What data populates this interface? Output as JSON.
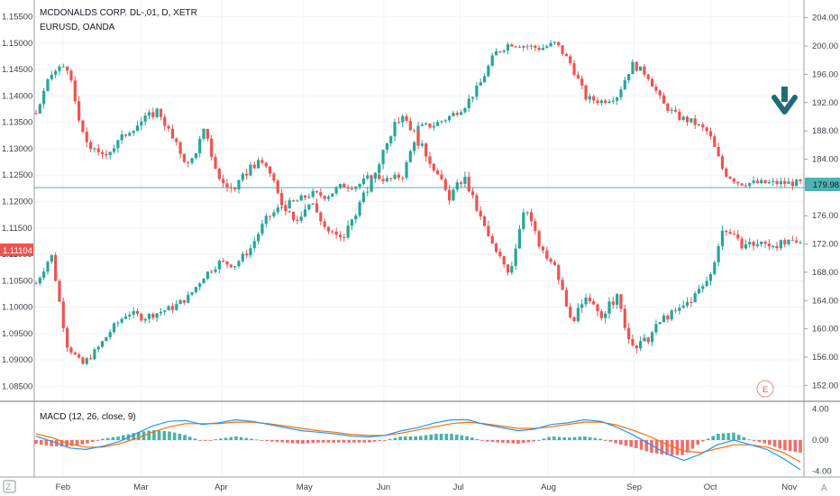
{
  "legend": {
    "main_symbol": "MCDONALDS CORP. DL-,01, D, XETR",
    "overlay_symbol": "EURUSD, OANDA",
    "macd_label": "MACD (12, 26, close, 9)"
  },
  "left_axis": {
    "ticks": [
      "1.15500",
      "1.15000",
      "1.14500",
      "1.14000",
      "1.13500",
      "1.13000",
      "1.12500",
      "1.12000",
      "1.11500",
      "1.11000",
      "1.10500",
      "1.10000",
      "1.09500",
      "1.09000",
      "1.08500"
    ],
    "current_label": "1.11104"
  },
  "right_axis": {
    "ticks": [
      "204.00",
      "200.00",
      "196.00",
      "192.00",
      "188.00",
      "184.00",
      "180.00",
      "176.00",
      "172.00",
      "168.00",
      "164.00",
      "160.00",
      "156.00",
      "152.00"
    ],
    "current_label": "179.98"
  },
  "macd_axis": {
    "ticks": [
      "4.00",
      "0.00",
      "-4.00"
    ]
  },
  "x_axis": {
    "ticks": [
      "Feb",
      "Mar",
      "Apr",
      "May",
      "Jun",
      "Jul",
      "Aug",
      "Sep",
      "Oct",
      "Nov"
    ]
  },
  "earnings_marker": "E",
  "colors": {
    "up": "#26a69a",
    "down": "#ef5350",
    "macd_line": "#2196f3",
    "signal_line": "#ff6d00",
    "price_line": "#4fb3b3",
    "arrow": "#1f6b7a",
    "eurusd_label_bg": "#ef5350"
  },
  "icons": {
    "down_arrow": "arrow-down-icon",
    "tv_logo": "tradingview-logo-icon"
  },
  "chart_data": [
    {
      "type": "candlestick",
      "name": "EURUSD, OANDA",
      "axis": "left",
      "ylim": [
        1.0825,
        1.1575
      ],
      "points": [
        [
          0,
          1.1045
        ],
        [
          0.02,
          1.11
        ],
        [
          0.04,
          1.093
        ],
        [
          0.06,
          1.089
        ],
        [
          0.08,
          1.092
        ],
        [
          0.1,
          1.096
        ],
        [
          0.12,
          1.099
        ],
        [
          0.14,
          1.098
        ],
        [
          0.16,
          1.099
        ],
        [
          0.18,
          1.1
        ],
        [
          0.2,
          1.102
        ],
        [
          0.22,
          1.106
        ],
        [
          0.24,
          1.1085
        ],
        [
          0.26,
          1.108
        ],
        [
          0.28,
          1.111
        ],
        [
          0.3,
          1.1165
        ],
        [
          0.32,
          1.119
        ],
        [
          0.34,
          1.12
        ],
        [
          0.36,
          1.1215
        ],
        [
          0.38,
          1.121
        ],
        [
          0.4,
          1.123
        ],
        [
          0.42,
          1.123
        ],
        [
          0.44,
          1.125
        ],
        [
          0.46,
          1.124
        ],
        [
          0.48,
          1.125
        ],
        [
          0.5,
          1.134
        ],
        [
          0.52,
          1.1345
        ],
        [
          0.54,
          1.136
        ],
        [
          0.56,
          1.138
        ],
        [
          0.58,
          1.142
        ],
        [
          0.6,
          1.148
        ],
        [
          0.62,
          1.15
        ],
        [
          0.64,
          1.1495
        ],
        [
          0.66,
          1.149
        ],
        [
          0.68,
          1.15
        ],
        [
          0.7,
          1.146
        ],
        [
          0.72,
          1.1395
        ],
        [
          0.74,
          1.139
        ],
        [
          0.76,
          1.14
        ],
        [
          0.78,
          1.146
        ],
        [
          0.8,
          1.144
        ],
        [
          0.82,
          1.1385
        ],
        [
          0.84,
          1.136
        ],
        [
          0.86,
          1.135
        ],
        [
          0.88,
          1.133
        ],
        [
          0.9,
          1.1255
        ],
        [
          0.92,
          1.1235
        ]
      ]
    },
    {
      "type": "candlestick",
      "name": "MCDONALDS CORP. DL-,01, D, XETR",
      "axis": "right",
      "ylim": [
        150,
        206
      ],
      "points": [
        [
          0,
          190.5
        ],
        [
          0.02,
          196.0
        ],
        [
          0.04,
          197.5
        ],
        [
          0.06,
          187.5
        ],
        [
          0.08,
          184.5
        ],
        [
          0.1,
          185.5
        ],
        [
          0.12,
          188.0
        ],
        [
          0.14,
          189.5
        ],
        [
          0.16,
          191.0
        ],
        [
          0.18,
          186.5
        ],
        [
          0.2,
          183.0
        ],
        [
          0.22,
          188.0
        ],
        [
          0.24,
          181.0
        ],
        [
          0.26,
          179.5
        ],
        [
          0.28,
          183.0
        ],
        [
          0.3,
          183.5
        ],
        [
          0.32,
          178.0
        ],
        [
          0.34,
          175.5
        ],
        [
          0.36,
          178.0
        ],
        [
          0.38,
          174.0
        ],
        [
          0.4,
          172.5
        ],
        [
          0.42,
          177.0
        ],
        [
          0.44,
          181.0
        ],
        [
          0.46,
          187.0
        ],
        [
          0.48,
          190.5
        ],
        [
          0.5,
          186.5
        ],
        [
          0.52,
          183.0
        ],
        [
          0.54,
          178.5
        ],
        [
          0.56,
          181.5
        ],
        [
          0.58,
          176.0
        ],
        [
          0.6,
          171.0
        ],
        [
          0.62,
          168.0
        ],
        [
          0.64,
          178.0
        ],
        [
          0.66,
          171.0
        ],
        [
          0.68,
          168.5
        ],
        [
          0.7,
          161.0
        ],
        [
          0.72,
          164.0
        ],
        [
          0.74,
          162.0
        ],
        [
          0.76,
          164.5
        ],
        [
          0.78,
          157.0
        ],
        [
          0.8,
          158.5
        ],
        [
          0.82,
          161.5
        ],
        [
          0.84,
          162.5
        ],
        [
          0.86,
          164.5
        ],
        [
          0.88,
          167.0
        ],
        [
          0.9,
          174.5
        ],
        [
          0.92,
          172.0
        ]
      ]
    },
    {
      "type": "line",
      "name": "MACD (12, 26, close, 9)",
      "ylim": [
        -4.5,
        4.5
      ],
      "series": [
        {
          "name": "MACD",
          "values": [
            0.5,
            -0.2,
            -1.0,
            -1.2,
            -0.8,
            -0.2,
            0.8,
            1.8,
            2.4,
            2.5,
            2.0,
            2.2,
            2.6,
            2.4,
            2.0,
            1.6,
            1.2,
            1.0,
            0.8,
            0.5,
            0.4,
            0.6,
            1.2,
            1.6,
            2.2,
            2.6,
            2.6,
            2.0,
            1.6,
            1.2,
            1.4,
            2.0,
            2.2,
            2.6,
            2.4,
            1.6,
            0.6,
            -0.6,
            -1.8,
            -2.6,
            -1.8,
            -0.6,
            0.0,
            -0.6,
            -1.2,
            -2.4,
            -3.8
          ]
        },
        {
          "name": "Signal",
          "values": [
            0.8,
            0.3,
            -0.5,
            -0.9,
            -0.9,
            -0.5,
            0.2,
            1.0,
            1.7,
            2.1,
            2.1,
            2.1,
            2.3,
            2.3,
            2.1,
            1.8,
            1.5,
            1.2,
            1.0,
            0.7,
            0.6,
            0.6,
            0.9,
            1.3,
            1.7,
            2.1,
            2.3,
            2.1,
            1.8,
            1.5,
            1.5,
            1.7,
            2.0,
            2.3,
            2.3,
            1.9,
            1.2,
            0.4,
            -0.6,
            -1.4,
            -1.6,
            -1.1,
            -0.6,
            -0.6,
            -0.9,
            -1.6,
            -2.8
          ]
        }
      ]
    }
  ]
}
